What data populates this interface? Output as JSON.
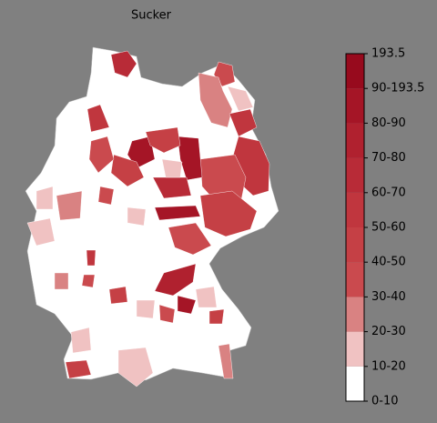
{
  "map": {
    "title": "Sucker",
    "legend": {
      "ticks": [
        "0-10",
        "10-20",
        "20-30",
        "30-40",
        "40-50",
        "50-60",
        "60-70",
        "70-80",
        "80-90",
        "90-193.5",
        "193.5"
      ],
      "colors": [
        "#ffffff",
        "#f0c2c2",
        "#d98282",
        "#ca4a4e",
        "#c54045",
        "#c0363e",
        "#b82b37",
        "#b0212f",
        "#a51526",
        "#970a1d"
      ]
    }
  }
}
